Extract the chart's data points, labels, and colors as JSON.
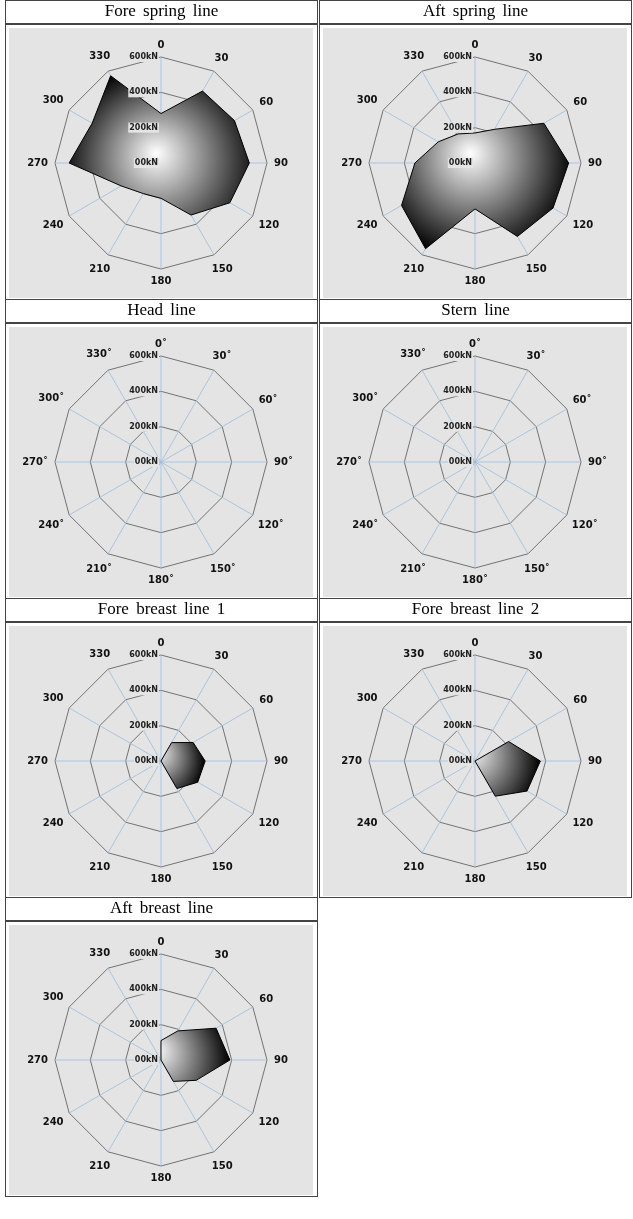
{
  "chart_data": [
    {
      "type": "radar",
      "title": "Fore spring line",
      "categories": [
        "0",
        "30",
        "60",
        "90",
        "120",
        "150",
        "180",
        "210",
        "240",
        "270",
        "300",
        "330"
      ],
      "ylim": [
        0,
        600
      ],
      "yticks": [
        {
          "value": 0,
          "label": "00kN"
        },
        {
          "value": 200,
          "label": "200kN"
        },
        {
          "value": 400,
          "label": "400kN"
        },
        {
          "value": 600,
          "label": "600kN"
        }
      ],
      "grid": true,
      "series": [
        {
          "color": "#000000",
          "values": [
            280,
            470,
            480,
            500,
            450,
            340,
            200,
            200,
            260,
            520,
            450,
            570
          ]
        }
      ]
    },
    {
      "type": "radar",
      "title": "Aft spring line",
      "categories": [
        "0",
        "30",
        "60",
        "90",
        "120",
        "150",
        "180",
        "210",
        "240",
        "270",
        "300",
        "330"
      ],
      "ylim": [
        0,
        600
      ],
      "yticks": [
        {
          "value": 0,
          "label": "00kN"
        },
        {
          "value": 200,
          "label": "200kN"
        },
        {
          "value": 400,
          "label": "400kN"
        },
        {
          "value": 600,
          "label": "600kN"
        }
      ],
      "grid": true,
      "series": [
        {
          "color": "#000000",
          "values": [
            170,
            220,
            450,
            530,
            510,
            480,
            260,
            560,
            480,
            340,
            240,
            190
          ]
        }
      ]
    },
    {
      "type": "radar",
      "title": "Head line",
      "categories": [
        "0˚",
        "30˚",
        "60˚",
        "90˚",
        "120˚",
        "150˚",
        "180˚",
        "210˚",
        "240˚",
        "270˚",
        "300˚",
        "330˚"
      ],
      "ylim": [
        0,
        600
      ],
      "yticks": [
        {
          "value": 0,
          "label": "00kN"
        },
        {
          "value": 200,
          "label": "200kN"
        },
        {
          "value": 400,
          "label": "400kN"
        },
        {
          "value": 600,
          "label": "600kN"
        }
      ],
      "grid": true
    },
    {
      "type": "radar",
      "title": "Stern line",
      "categories": [
        "0˚",
        "30˚",
        "60˚",
        "90˚",
        "120˚",
        "150˚",
        "180˚",
        "210˚",
        "240˚",
        "270˚",
        "300˚",
        "330˚"
      ],
      "ylim": [
        0,
        600
      ],
      "yticks": [
        {
          "value": 0,
          "label": "00kN"
        },
        {
          "value": 200,
          "label": "200kN"
        },
        {
          "value": 400,
          "label": "400kN"
        },
        {
          "value": 600,
          "label": "600kN"
        }
      ],
      "grid": true
    },
    {
      "type": "radar",
      "title": "Fore breast line 1",
      "categories": [
        "0",
        "30",
        "60",
        "90",
        "120",
        "150",
        "180",
        "210",
        "240",
        "270",
        "300",
        "330"
      ],
      "ylim": [
        0,
        600
      ],
      "yticks": [
        {
          "value": 0,
          "label": "00kN"
        },
        {
          "value": 200,
          "label": "200kN"
        },
        {
          "value": 400,
          "label": "400kN"
        },
        {
          "value": 600,
          "label": "600kN"
        }
      ],
      "grid": true,
      "series": [
        {
          "color": "#000000",
          "values": [
            0,
            120,
            210,
            250,
            240,
            180,
            0,
            0,
            0,
            0,
            0,
            0
          ]
        }
      ]
    },
    {
      "type": "radar",
      "title": "Fore breast line 2",
      "categories": [
        "0",
        "30",
        "60",
        "90",
        "120",
        "150",
        "180",
        "210",
        "240",
        "270",
        "300",
        "330"
      ],
      "ylim": [
        0,
        600
      ],
      "yticks": [
        {
          "value": 0,
          "label": "00kN"
        },
        {
          "value": 200,
          "label": "200kN"
        },
        {
          "value": 400,
          "label": "400kN"
        },
        {
          "value": 600,
          "label": "600kN"
        }
      ],
      "grid": true,
      "series": [
        {
          "color": "#000000",
          "values": [
            0,
            0,
            220,
            370,
            340,
            230,
            0,
            0,
            0,
            0,
            0,
            0
          ]
        }
      ]
    },
    {
      "type": "radar",
      "title": "Aft breast line",
      "categories": [
        "0",
        "30",
        "60",
        "90",
        "120",
        "150",
        "180",
        "210",
        "240",
        "270",
        "300",
        "330"
      ],
      "ylim": [
        0,
        600
      ],
      "yticks": [
        {
          "value": 0,
          "label": "00kN"
        },
        {
          "value": 200,
          "label": "200kN"
        },
        {
          "value": 400,
          "label": "400kN"
        },
        {
          "value": 600,
          "label": "600kN"
        }
      ],
      "grid": true,
      "series": [
        {
          "color": "#000000",
          "values": [
            110,
            190,
            360,
            390,
            230,
            140,
            0,
            0,
            0,
            0,
            0,
            0
          ]
        }
      ]
    }
  ]
}
